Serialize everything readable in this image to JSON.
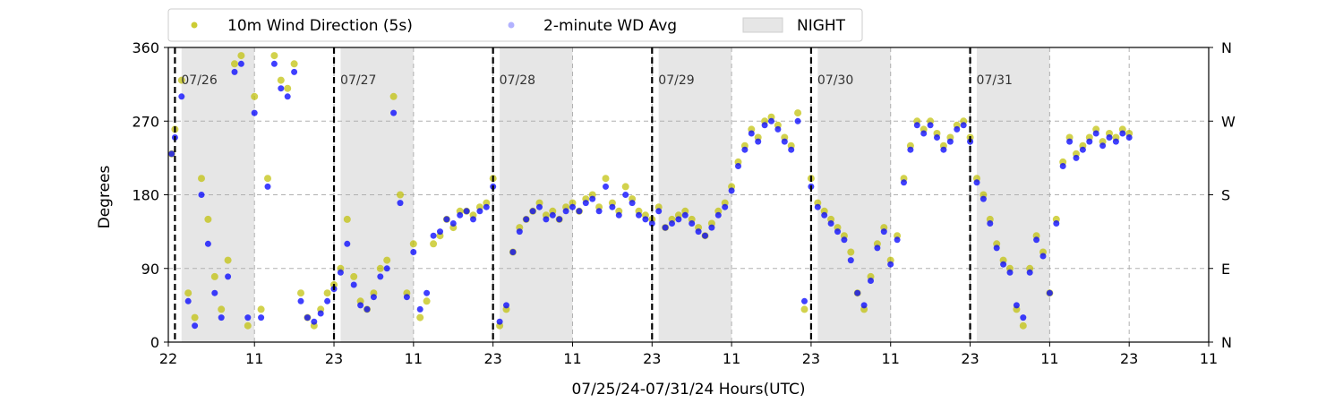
{
  "chart_data": {
    "type": "scatter",
    "xlabel": "07/25/24-07/31/24  Hours(UTC)",
    "ylabel": "Degrees",
    "y2_ticks": [
      "N",
      "E",
      "S",
      "W",
      "N"
    ],
    "ylim": [
      0,
      360
    ],
    "yticks": [
      0,
      90,
      180,
      270,
      360
    ],
    "x_tick_labels": [
      "22",
      "11",
      "23",
      "11",
      "23",
      "11",
      "23",
      "11",
      "23",
      "11",
      "23",
      "11",
      "23",
      "11"
    ],
    "x_tick_hours": [
      22,
      35,
      47,
      59,
      71,
      83,
      95,
      107,
      119,
      131,
      143,
      155,
      167,
      179
    ],
    "xlim_hours": [
      22,
      179
    ],
    "grid": "dashed at y ticks and x ticks",
    "legend": {
      "position": "top-above",
      "entries": [
        {
          "label": "10m Wind Direction (5s)",
          "color": "#bfbf00",
          "marker": "circle"
        },
        {
          "label": "2-minute WD Avg",
          "color": "#0000ff",
          "marker": "circle-faint"
        },
        {
          "label": "NIGHT",
          "color": "#e6e6e6",
          "marker": "patch"
        }
      ]
    },
    "day_markers": [
      {
        "label": "07/26",
        "hour": 23
      },
      {
        "label": "07/27",
        "hour": 47
      },
      {
        "label": "07/28",
        "hour": 71
      },
      {
        "label": "07/29",
        "hour": 95
      },
      {
        "label": "07/30",
        "hour": 119
      },
      {
        "label": "07/31",
        "hour": 143
      }
    ],
    "night_spans": [
      [
        24,
        35
      ],
      [
        48,
        59
      ],
      [
        72,
        83
      ],
      [
        96,
        107
      ],
      [
        120,
        131
      ],
      [
        144,
        155
      ]
    ],
    "series": [
      {
        "name": "10m Wind Direction (5s)",
        "color": "#bfbf00",
        "points": [
          [
            22.5,
            230
          ],
          [
            23,
            260
          ],
          [
            24,
            320
          ],
          [
            25,
            60
          ],
          [
            26,
            30
          ],
          [
            27,
            200
          ],
          [
            28,
            150
          ],
          [
            29,
            80
          ],
          [
            30,
            40
          ],
          [
            31,
            100
          ],
          [
            32,
            340
          ],
          [
            33,
            350
          ],
          [
            34,
            20
          ],
          [
            35,
            300
          ],
          [
            36,
            40
          ],
          [
            37,
            200
          ],
          [
            38,
            350
          ],
          [
            39,
            320
          ],
          [
            40,
            310
          ],
          [
            41,
            340
          ],
          [
            42,
            60
          ],
          [
            43,
            30
          ],
          [
            44,
            20
          ],
          [
            45,
            40
          ],
          [
            46,
            60
          ],
          [
            47,
            70
          ],
          [
            48,
            90
          ],
          [
            49,
            150
          ],
          [
            50,
            80
          ],
          [
            51,
            50
          ],
          [
            52,
            40
          ],
          [
            53,
            60
          ],
          [
            54,
            90
          ],
          [
            55,
            100
          ],
          [
            56,
            300
          ],
          [
            57,
            180
          ],
          [
            58,
            60
          ],
          [
            59,
            120
          ],
          [
            60,
            30
          ],
          [
            61,
            50
          ],
          [
            62,
            120
          ],
          [
            63,
            130
          ],
          [
            64,
            150
          ],
          [
            65,
            140
          ],
          [
            66,
            160
          ],
          [
            67,
            160
          ],
          [
            68,
            155
          ],
          [
            69,
            165
          ],
          [
            70,
            170
          ],
          [
            71,
            200
          ],
          [
            72,
            20
          ],
          [
            73,
            40
          ],
          [
            74,
            110
          ],
          [
            75,
            140
          ],
          [
            76,
            150
          ],
          [
            77,
            160
          ],
          [
            78,
            170
          ],
          [
            79,
            155
          ],
          [
            80,
            160
          ],
          [
            81,
            150
          ],
          [
            82,
            165
          ],
          [
            83,
            170
          ],
          [
            84,
            160
          ],
          [
            85,
            175
          ],
          [
            86,
            180
          ],
          [
            87,
            165
          ],
          [
            88,
            200
          ],
          [
            89,
            170
          ],
          [
            90,
            160
          ],
          [
            91,
            190
          ],
          [
            92,
            175
          ],
          [
            93,
            160
          ],
          [
            94,
            155
          ],
          [
            95,
            150
          ],
          [
            96,
            165
          ],
          [
            97,
            140
          ],
          [
            98,
            150
          ],
          [
            99,
            155
          ],
          [
            100,
            160
          ],
          [
            101,
            150
          ],
          [
            102,
            140
          ],
          [
            103,
            130
          ],
          [
            104,
            145
          ],
          [
            105,
            160
          ],
          [
            106,
            170
          ],
          [
            107,
            190
          ],
          [
            108,
            220
          ],
          [
            109,
            240
          ],
          [
            110,
            260
          ],
          [
            111,
            250
          ],
          [
            112,
            270
          ],
          [
            113,
            275
          ],
          [
            114,
            265
          ],
          [
            115,
            250
          ],
          [
            116,
            240
          ],
          [
            117,
            280
          ],
          [
            118,
            40
          ],
          [
            119,
            200
          ],
          [
            120,
            170
          ],
          [
            121,
            160
          ],
          [
            122,
            150
          ],
          [
            123,
            140
          ],
          [
            124,
            130
          ],
          [
            125,
            110
          ],
          [
            126,
            60
          ],
          [
            127,
            40
          ],
          [
            128,
            80
          ],
          [
            129,
            120
          ],
          [
            130,
            140
          ],
          [
            131,
            100
          ],
          [
            132,
            130
          ],
          [
            133,
            200
          ],
          [
            134,
            240
          ],
          [
            135,
            270
          ],
          [
            136,
            260
          ],
          [
            137,
            270
          ],
          [
            138,
            255
          ],
          [
            139,
            240
          ],
          [
            140,
            250
          ],
          [
            141,
            265
          ],
          [
            142,
            270
          ],
          [
            143,
            250
          ],
          [
            144,
            200
          ],
          [
            145,
            180
          ],
          [
            146,
            150
          ],
          [
            147,
            120
          ],
          [
            148,
            100
          ],
          [
            149,
            90
          ],
          [
            150,
            40
          ],
          [
            151,
            20
          ],
          [
            152,
            90
          ],
          [
            153,
            130
          ],
          [
            154,
            110
          ],
          [
            155,
            60
          ],
          [
            156,
            150
          ],
          [
            157,
            220
          ],
          [
            158,
            250
          ],
          [
            159,
            230
          ],
          [
            160,
            240
          ],
          [
            161,
            250
          ],
          [
            162,
            260
          ],
          [
            163,
            245
          ],
          [
            164,
            255
          ],
          [
            165,
            250
          ],
          [
            166,
            260
          ],
          [
            167,
            255
          ]
        ]
      },
      {
        "name": "2-minute WD Avg",
        "color": "#0000ff",
        "points": [
          [
            22.5,
            230
          ],
          [
            23,
            250
          ],
          [
            24,
            300
          ],
          [
            25,
            50
          ],
          [
            26,
            20
          ],
          [
            27,
            180
          ],
          [
            28,
            120
          ],
          [
            29,
            60
          ],
          [
            30,
            30
          ],
          [
            31,
            80
          ],
          [
            32,
            330
          ],
          [
            33,
            340
          ],
          [
            34,
            30
          ],
          [
            35,
            280
          ],
          [
            36,
            30
          ],
          [
            37,
            190
          ],
          [
            38,
            340
          ],
          [
            39,
            310
          ],
          [
            40,
            300
          ],
          [
            41,
            330
          ],
          [
            42,
            50
          ],
          [
            43,
            30
          ],
          [
            44,
            25
          ],
          [
            45,
            35
          ],
          [
            46,
            50
          ],
          [
            47,
            65
          ],
          [
            48,
            85
          ],
          [
            49,
            120
          ],
          [
            50,
            70
          ],
          [
            51,
            45
          ],
          [
            52,
            40
          ],
          [
            53,
            55
          ],
          [
            54,
            80
          ],
          [
            55,
            90
          ],
          [
            56,
            280
          ],
          [
            57,
            170
          ],
          [
            58,
            55
          ],
          [
            59,
            110
          ],
          [
            60,
            40
          ],
          [
            61,
            60
          ],
          [
            62,
            130
          ],
          [
            63,
            135
          ],
          [
            64,
            150
          ],
          [
            65,
            145
          ],
          [
            66,
            155
          ],
          [
            67,
            160
          ],
          [
            68,
            150
          ],
          [
            69,
            160
          ],
          [
            70,
            165
          ],
          [
            71,
            190
          ],
          [
            72,
            25
          ],
          [
            73,
            45
          ],
          [
            74,
            110
          ],
          [
            75,
            135
          ],
          [
            76,
            150
          ],
          [
            77,
            160
          ],
          [
            78,
            165
          ],
          [
            79,
            150
          ],
          [
            80,
            155
          ],
          [
            81,
            150
          ],
          [
            82,
            160
          ],
          [
            83,
            165
          ],
          [
            84,
            160
          ],
          [
            85,
            170
          ],
          [
            86,
            175
          ],
          [
            87,
            160
          ],
          [
            88,
            190
          ],
          [
            89,
            165
          ],
          [
            90,
            155
          ],
          [
            91,
            180
          ],
          [
            92,
            170
          ],
          [
            93,
            155
          ],
          [
            94,
            150
          ],
          [
            95,
            145
          ],
          [
            96,
            160
          ],
          [
            97,
            140
          ],
          [
            98,
            145
          ],
          [
            99,
            150
          ],
          [
            100,
            155
          ],
          [
            101,
            145
          ],
          [
            102,
            135
          ],
          [
            103,
            130
          ],
          [
            104,
            140
          ],
          [
            105,
            155
          ],
          [
            106,
            165
          ],
          [
            107,
            185
          ],
          [
            108,
            215
          ],
          [
            109,
            235
          ],
          [
            110,
            255
          ],
          [
            111,
            245
          ],
          [
            112,
            265
          ],
          [
            113,
            270
          ],
          [
            114,
            260
          ],
          [
            115,
            245
          ],
          [
            116,
            235
          ],
          [
            117,
            270
          ],
          [
            118,
            50
          ],
          [
            119,
            190
          ],
          [
            120,
            165
          ],
          [
            121,
            155
          ],
          [
            122,
            145
          ],
          [
            123,
            135
          ],
          [
            124,
            125
          ],
          [
            125,
            100
          ],
          [
            126,
            60
          ],
          [
            127,
            45
          ],
          [
            128,
            75
          ],
          [
            129,
            115
          ],
          [
            130,
            135
          ],
          [
            131,
            95
          ],
          [
            132,
            125
          ],
          [
            133,
            195
          ],
          [
            134,
            235
          ],
          [
            135,
            265
          ],
          [
            136,
            255
          ],
          [
            137,
            265
          ],
          [
            138,
            250
          ],
          [
            139,
            235
          ],
          [
            140,
            245
          ],
          [
            141,
            260
          ],
          [
            142,
            265
          ],
          [
            143,
            245
          ],
          [
            144,
            195
          ],
          [
            145,
            175
          ],
          [
            146,
            145
          ],
          [
            147,
            115
          ],
          [
            148,
            95
          ],
          [
            149,
            85
          ],
          [
            150,
            45
          ],
          [
            151,
            30
          ],
          [
            152,
            85
          ],
          [
            153,
            125
          ],
          [
            154,
            105
          ],
          [
            155,
            60
          ],
          [
            156,
            145
          ],
          [
            157,
            215
          ],
          [
            158,
            245
          ],
          [
            159,
            225
          ],
          [
            160,
            235
          ],
          [
            161,
            245
          ],
          [
            162,
            255
          ],
          [
            163,
            240
          ],
          [
            164,
            250
          ],
          [
            165,
            245
          ],
          [
            166,
            255
          ],
          [
            167,
            250
          ]
        ]
      }
    ]
  }
}
